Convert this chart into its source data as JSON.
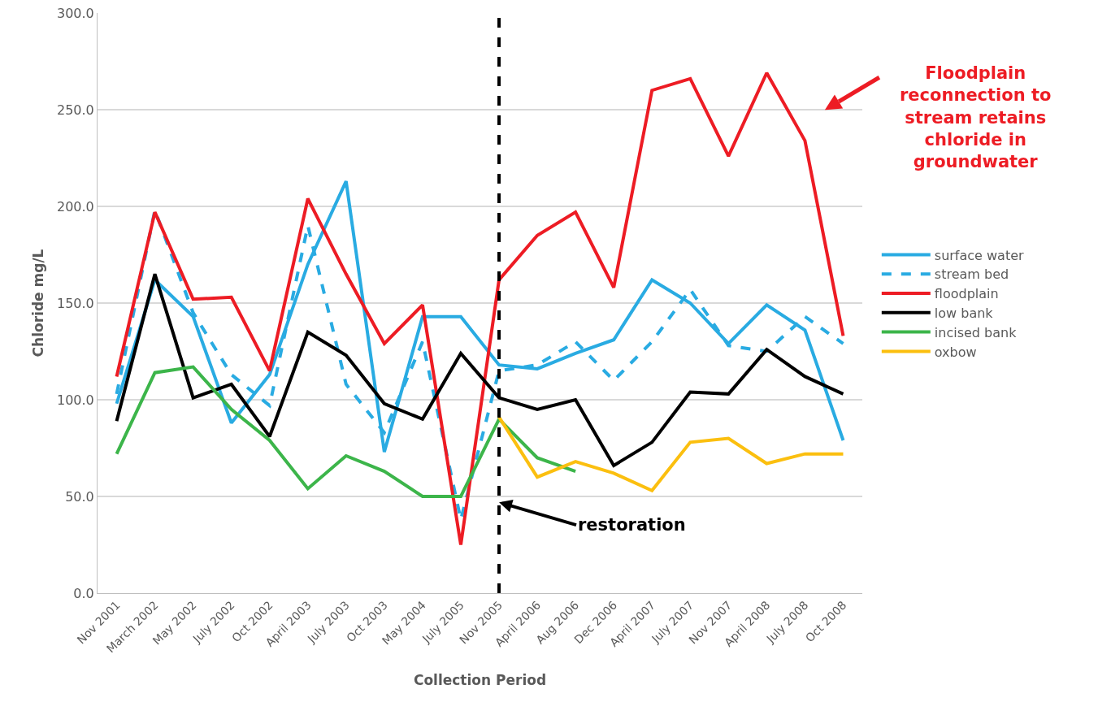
{
  "chart_data": {
    "type": "line",
    "xlabel": "Collection Period",
    "ylabel": "Chloride mg/L",
    "categories": [
      "Nov 2001",
      "March 2002",
      "May 2002",
      "July 2002",
      "Oct 2002",
      "April 2003",
      "July 2003",
      "Oct 2003",
      "May 2004",
      "July 2005",
      "Nov 2005",
      "April 2006",
      "Aug 2006",
      "Dec 2006",
      "April 2007",
      "July 2007",
      "Nov 2007",
      "April 2008",
      "July 2008",
      "Oct 2008"
    ],
    "series": [
      {
        "name": "surface water",
        "color": "#29abe2",
        "line_style": "solid",
        "values": [
          98,
          162,
          143,
          88,
          113,
          170,
          213,
          73,
          143,
          143,
          118,
          116,
          124,
          131,
          162,
          150,
          129,
          149,
          136,
          79
        ]
      },
      {
        "name": "stream bed",
        "color": "#29abe2",
        "line_style": "dashed",
        "values": [
          103,
          198,
          145,
          113,
          97,
          190,
          108,
          83,
          130,
          38,
          115,
          118,
          130,
          110,
          130,
          157,
          128,
          125,
          143,
          129
        ]
      },
      {
        "name": "floodplain",
        "color": "#ed1c24",
        "line_style": "solid",
        "values": [
          112,
          197,
          152,
          153,
          115,
          204,
          165,
          129,
          149,
          25,
          162,
          185,
          197,
          158,
          260,
          266,
          226,
          269,
          234,
          133
        ]
      },
      {
        "name": "low bank",
        "color": "#000000",
        "line_style": "solid",
        "values": [
          89,
          165,
          101,
          108,
          81,
          135,
          123,
          98,
          90,
          124,
          101,
          95,
          100,
          66,
          78,
          104,
          103,
          126,
          112,
          103
        ]
      },
      {
        "name": "incised bank",
        "color": "#3cb54a",
        "line_style": "solid",
        "values": [
          72,
          114,
          117,
          95,
          79,
          54,
          71,
          63,
          50,
          50,
          90,
          70,
          63,
          null,
          null,
          null,
          null,
          null,
          null,
          null
        ]
      },
      {
        "name": "oxbow",
        "color": "#fbbf0f",
        "line_style": "solid",
        "values": [
          null,
          null,
          null,
          null,
          null,
          null,
          null,
          null,
          null,
          null,
          91,
          60,
          68,
          62,
          53,
          78,
          80,
          67,
          72,
          72
        ]
      }
    ],
    "ylim": [
      0,
      300
    ],
    "yticks": [
      {
        "value": 0,
        "label": "0.0"
      },
      {
        "value": 50,
        "label": "50.0"
      },
      {
        "value": 100,
        "label": "100.0"
      },
      {
        "value": 150,
        "label": "150.0"
      },
      {
        "value": 200,
        "label": "200.0"
      },
      {
        "value": 250,
        "label": "250.0"
      },
      {
        "value": 300,
        "label": "300.0"
      }
    ],
    "grid": "y",
    "legend": "right",
    "marker": "none",
    "ref_lines": [
      {
        "axis": "x",
        "value": "Nov 2005",
        "color": "#000000",
        "line_style": "dashed"
      }
    ],
    "annotations": [
      {
        "text": "restoration",
        "x": "Nov 2005",
        "y": 47
      },
      "Floodplain reconnection to stream retains chloride in groundwater"
    ]
  }
}
